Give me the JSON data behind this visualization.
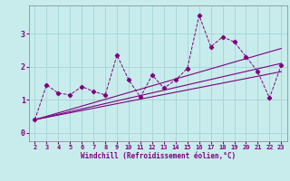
{
  "xlabel": "Windchill (Refroidissement éolien,°C)",
  "bg_color": "#c8ecec",
  "grid_color": "#a8d8d8",
  "line_color": "#800080",
  "x": [
    2,
    3,
    4,
    5,
    6,
    7,
    8,
    9,
    10,
    11,
    12,
    13,
    14,
    15,
    16,
    17,
    18,
    19,
    20,
    21,
    22,
    23
  ],
  "y_data": [
    0.4,
    1.45,
    1.2,
    1.15,
    1.4,
    1.25,
    1.15,
    2.35,
    1.6,
    1.08,
    1.75,
    1.35,
    1.6,
    1.95,
    3.55,
    2.6,
    2.9,
    2.75,
    2.3,
    1.85,
    1.05,
    2.05
  ],
  "trend1_x": [
    2,
    23
  ],
  "trend1_y": [
    0.4,
    2.55
  ],
  "trend2_x": [
    2,
    23
  ],
  "trend2_y": [
    0.4,
    2.1
  ],
  "trend3_x": [
    2,
    23
  ],
  "trend3_y": [
    0.4,
    1.85
  ],
  "ylim": [
    -0.25,
    3.85
  ],
  "xlim": [
    1.5,
    23.5
  ],
  "yticks": [
    0,
    1,
    2,
    3
  ],
  "xticks": [
    2,
    3,
    4,
    5,
    6,
    7,
    8,
    9,
    10,
    11,
    12,
    13,
    14,
    15,
    16,
    17,
    18,
    19,
    20,
    21,
    22,
    23
  ]
}
